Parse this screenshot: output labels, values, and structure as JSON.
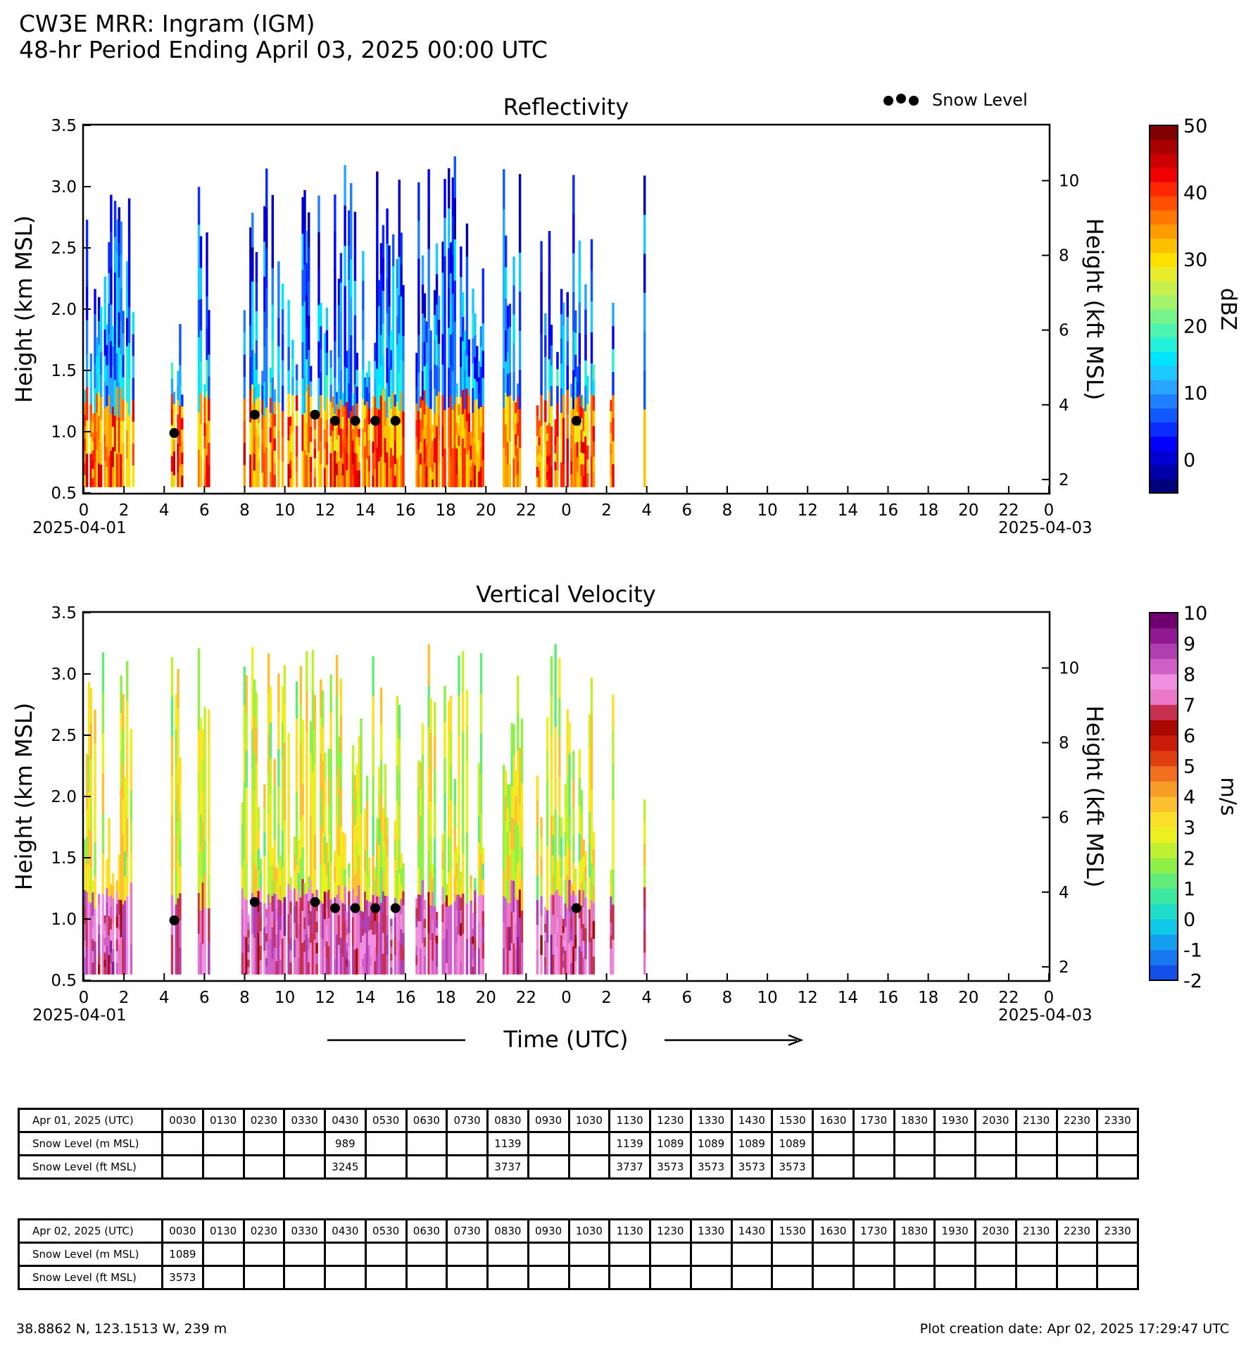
{
  "header": {
    "title": "CW3E MRR: Ingram (IGM)",
    "subtitle": "48-hr Period Ending April 03, 2025 00:00 UTC"
  },
  "legend": {
    "label": "Snow Level",
    "color": "#000000"
  },
  "shared_axes": {
    "y_left_label": "Height (km MSL)",
    "y_right_label": "Height (kft MSL)",
    "y_ticks": [
      "0.5",
      "1.0",
      "1.5",
      "2.0",
      "2.5",
      "3.0",
      "3.5"
    ],
    "y_right_ticks": [
      "2",
      "4",
      "6",
      "8",
      "10"
    ],
    "x_ticks": [
      "0",
      "2",
      "4",
      "6",
      "8",
      "10",
      "12",
      "14",
      "16",
      "18",
      "20",
      "22",
      "0",
      "2",
      "4",
      "6",
      "8",
      "10",
      "12",
      "14",
      "16",
      "18",
      "20",
      "22",
      "0"
    ],
    "x_start_date": "2025-04-01",
    "x_end_date": "2025-04-03",
    "x_title": "Time (UTC)"
  },
  "chart_data": [
    {
      "type": "heatmap",
      "title": "Reflectivity",
      "xlabel": "",
      "ylabel": "Height (km MSL)",
      "ylabel_right": "Height (kft MSL)",
      "ylim": [
        0.5,
        3.5
      ],
      "ylim_right_kft": [
        1.64,
        11.48
      ],
      "xlim_hours": [
        0,
        48
      ],
      "colorbar": {
        "unit": "dBZ",
        "range": [
          -5,
          50
        ],
        "ticks": [
          "0",
          "10",
          "20",
          "30",
          "40",
          "50"
        ],
        "colors": [
          "#00007a",
          "#0000a8",
          "#0000d4",
          "#0000ff",
          "#0a2cff",
          "#1058ff",
          "#1e80ff",
          "#28a6ff",
          "#1cc8ff",
          "#00e4ff",
          "#22f0d8",
          "#4cf4b0",
          "#78f48c",
          "#a4f46c",
          "#c8f04c",
          "#e8ec2c",
          "#ffe000",
          "#ffc000",
          "#ff9c00",
          "#ff7800",
          "#ff5000",
          "#ff2800",
          "#f00000",
          "#cc0000",
          "#a80000",
          "#800000"
        ]
      },
      "series": [
        {
          "name": "Snow Level",
          "x_datetime_utc": [
            "2025-04-01 04:30",
            "2025-04-01 08:30",
            "2025-04-01 11:30",
            "2025-04-01 12:30",
            "2025-04-01 13:30",
            "2025-04-01 14:30",
            "2025-04-01 15:30",
            "2025-04-02 00:30"
          ],
          "y_km": [
            0.989,
            1.139,
            1.139,
            1.089,
            1.089,
            1.089,
            1.089,
            1.089
          ]
        }
      ],
      "echo_intervals_utc": [
        [
          "2025-04-01 00:00",
          "2025-04-01 02:30"
        ],
        [
          "2025-04-01 04:20",
          "2025-04-01 04:50"
        ],
        [
          "2025-04-01 05:40",
          "2025-04-01 06:10"
        ],
        [
          "2025-04-01 07:50",
          "2025-04-01 15:50"
        ],
        [
          "2025-04-01 16:30",
          "2025-04-01 19:50"
        ],
        [
          "2025-04-01 20:50",
          "2025-04-01 21:50"
        ],
        [
          "2025-04-01 22:30",
          "2025-04-02 01:20"
        ],
        [
          "2025-04-02 02:10",
          "2025-04-02 02:20"
        ],
        [
          "2025-04-02 03:50",
          "2025-04-02 03:55"
        ]
      ]
    },
    {
      "type": "heatmap",
      "title": "Vertical Velocity",
      "xlabel": "Time (UTC)",
      "ylabel": "Height (km MSL)",
      "ylabel_right": "Height (kft MSL)",
      "ylim": [
        0.5,
        3.5
      ],
      "ylim_right_kft": [
        1.64,
        11.48
      ],
      "xlim_hours": [
        0,
        48
      ],
      "colorbar": {
        "unit": "m/s",
        "range": [
          -2,
          10
        ],
        "ticks": [
          "-2",
          "-1",
          "0",
          "1",
          "2",
          "3",
          "4",
          "5",
          "6",
          "7",
          "8",
          "9",
          "10"
        ],
        "colors": [
          "#1450e8",
          "#1878f0",
          "#14a0f0",
          "#10c8e8",
          "#20dcc8",
          "#3ce8a0",
          "#60ec78",
          "#90f048",
          "#c0f030",
          "#ecf020",
          "#fce028",
          "#fcc030",
          "#f89c28",
          "#f07020",
          "#e04010",
          "#c81c08",
          "#a80800",
          "#c83050",
          "#e878c8",
          "#f090e0",
          "#d060c8",
          "#b040b0",
          "#901890",
          "#700070"
        ]
      },
      "series": [
        {
          "name": "Snow Level",
          "x_datetime_utc": [
            "2025-04-01 04:30",
            "2025-04-01 08:30",
            "2025-04-01 11:30",
            "2025-04-01 12:30",
            "2025-04-01 13:30",
            "2025-04-01 14:30",
            "2025-04-01 15:30",
            "2025-04-02 00:30"
          ],
          "y_km": [
            0.989,
            1.139,
            1.139,
            1.089,
            1.089,
            1.089,
            1.089,
            1.089
          ]
        }
      ],
      "echo_intervals_utc": [
        [
          "2025-04-01 00:00",
          "2025-04-01 02:30"
        ],
        [
          "2025-04-01 04:20",
          "2025-04-01 04:50"
        ],
        [
          "2025-04-01 05:40",
          "2025-04-01 06:10"
        ],
        [
          "2025-04-01 07:50",
          "2025-04-01 15:50"
        ],
        [
          "2025-04-01 16:30",
          "2025-04-01 19:50"
        ],
        [
          "2025-04-01 20:50",
          "2025-04-01 21:50"
        ],
        [
          "2025-04-01 22:30",
          "2025-04-02 01:20"
        ],
        [
          "2025-04-02 02:10",
          "2025-04-02 02:20"
        ],
        [
          "2025-04-02 03:50",
          "2025-04-02 03:55"
        ]
      ]
    }
  ],
  "tables": [
    {
      "date_label": "Apr 01, 2025 (UTC)",
      "times": [
        "0030",
        "0130",
        "0230",
        "0330",
        "0430",
        "0530",
        "0630",
        "0730",
        "0830",
        "0930",
        "1030",
        "1130",
        "1230",
        "1330",
        "1430",
        "1530",
        "1630",
        "1730",
        "1830",
        "1930",
        "2030",
        "2130",
        "2230",
        "2330"
      ],
      "rows": [
        {
          "label": "Snow Level (m MSL)",
          "values": [
            "",
            "",
            "",
            "",
            "989",
            "",
            "",
            "",
            "1139",
            "",
            "",
            "1139",
            "1089",
            "1089",
            "1089",
            "1089",
            "",
            "",
            "",
            "",
            "",
            "",
            "",
            ""
          ]
        },
        {
          "label": "Snow Level (ft MSL)",
          "values": [
            "",
            "",
            "",
            "",
            "3245",
            "",
            "",
            "",
            "3737",
            "",
            "",
            "3737",
            "3573",
            "3573",
            "3573",
            "3573",
            "",
            "",
            "",
            "",
            "",
            "",
            "",
            ""
          ]
        }
      ]
    },
    {
      "date_label": "Apr 02, 2025 (UTC)",
      "times": [
        "0030",
        "0130",
        "0230",
        "0330",
        "0430",
        "0530",
        "0630",
        "0730",
        "0830",
        "0930",
        "1030",
        "1130",
        "1230",
        "1330",
        "1430",
        "1530",
        "1630",
        "1730",
        "1830",
        "1930",
        "2030",
        "2130",
        "2230",
        "2330"
      ],
      "rows": [
        {
          "label": "Snow Level (m MSL)",
          "values": [
            "1089",
            "",
            "",
            "",
            "",
            "",
            "",
            "",
            "",
            "",
            "",
            "",
            "",
            "",
            "",
            "",
            "",
            "",
            "",
            "",
            "",
            "",
            "",
            ""
          ]
        },
        {
          "label": "Snow Level (ft MSL)",
          "values": [
            "3573",
            "",
            "",
            "",
            "",
            "",
            "",
            "",
            "",
            "",
            "",
            "",
            "",
            "",
            "",
            "",
            "",
            "",
            "",
            "",
            "",
            "",
            "",
            ""
          ]
        }
      ]
    }
  ],
  "footer": {
    "location": "38.8862 N, 123.1513 W, 239 m",
    "creation": "Plot creation date: Apr 02, 2025 17:29:47 UTC"
  }
}
